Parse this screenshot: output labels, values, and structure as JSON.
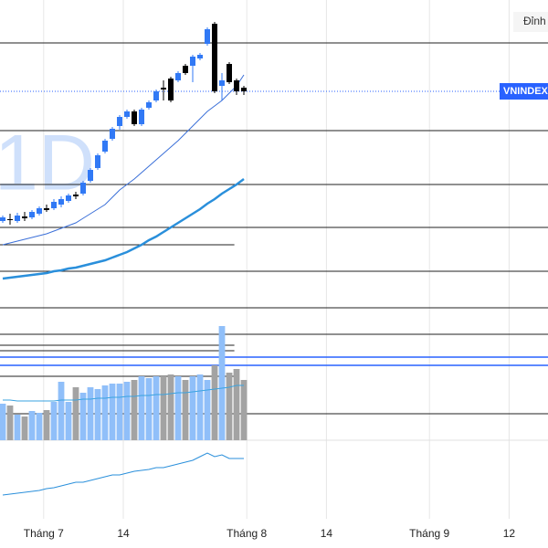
{
  "chart_data": {
    "type": "candlestick",
    "symbol": "VNINDEX",
    "interval": "1D",
    "top_label": "Đỉnh",
    "ylim": [
      0,
      600
    ],
    "xlim": [
      -0.375,
      74.625
    ],
    "xticks": [
      {
        "value": 5.6,
        "label": "Tháng 7"
      },
      {
        "value": 16.5,
        "label": "14"
      },
      {
        "value": 33.4,
        "label": "Tháng 8"
      },
      {
        "value": 44.3,
        "label": "14"
      },
      {
        "value": 58.4,
        "label": "Tháng 9"
      },
      {
        "value": 69.3,
        "label": "12"
      }
    ],
    "up_color": "#3179f5",
    "down_color": "#000000",
    "candles": {
      "open": [
        358,
        360,
        358,
        363,
        362,
        366,
        372,
        372,
        376,
        380,
        387,
        388,
        402,
        416,
        434,
        448,
        462,
        472,
        478,
        464,
        482,
        490,
        504,
        514,
        512,
        528,
        528,
        536,
        552,
        574,
        506,
        530,
        512,
        504
      ],
      "high": [
        364,
        366,
        367,
        368,
        370,
        374,
        376,
        382,
        385,
        388,
        390,
        402,
        416,
        432,
        448,
        461,
        474,
        480,
        480,
        482,
        490,
        502,
        512,
        516,
        522,
        530,
        540,
        542,
        570,
        576,
        520,
        532,
        514,
        506
      ],
      "low": [
        356,
        354,
        356,
        358,
        360,
        364,
        368,
        370,
        373,
        378,
        382,
        386,
        400,
        414,
        432,
        446,
        458,
        470,
        462,
        462,
        480,
        488,
        490,
        488,
        510,
        518,
        510,
        534,
        550,
        498,
        490,
        508,
        496,
        496
      ],
      "close": [
        362,
        359,
        364,
        361,
        368,
        372,
        370,
        379,
        382,
        386,
        385,
        400,
        414,
        430,
        446,
        459,
        472,
        478,
        464,
        480,
        488,
        500,
        502,
        490,
        520,
        520,
        538,
        540,
        568,
        500,
        512,
        510,
        500,
        500
      ]
    },
    "moving_averages": [
      {
        "color": "#3a6fd8",
        "width": 1,
        "values": [
          332,
          334,
          336,
          338,
          340,
          342,
          344,
          347,
          350,
          353,
          356,
          361,
          366,
          371,
          376,
          384,
          392,
          398,
          404,
          411,
          418,
          425,
          432,
          439,
          446,
          454,
          462,
          470,
          478,
          484,
          490,
          498,
          506,
          518
        ]
      },
      {
        "color": "#2a8fdb",
        "width": 2.5,
        "values": [
          295,
          296,
          297,
          298,
          299,
          300,
          301,
          303,
          304,
          306,
          307,
          309,
          311,
          313,
          315,
          318,
          321,
          324,
          328,
          332,
          337,
          341,
          346,
          351,
          356,
          361,
          366,
          371,
          377,
          382,
          388,
          393,
          398,
          404
        ]
      }
    ],
    "volume": {
      "ylim": [
        0,
        482
      ],
      "up_color": "#90bff9",
      "down_color": "#a3a3a3",
      "ma_color": "#3aa3e0",
      "values": [
        40,
        38,
        28,
        26,
        32,
        30,
        33,
        42,
        64,
        42,
        58,
        52,
        58,
        56,
        60,
        62,
        62,
        64,
        66,
        70,
        68,
        70,
        70,
        72,
        70,
        66,
        70,
        72,
        66,
        82,
        125,
        74,
        78,
        66
      ],
      "ma": [
        44,
        44,
        43,
        43,
        43,
        43,
        43,
        43,
        44,
        44,
        44,
        45,
        45,
        46,
        46,
        47,
        47,
        48,
        48,
        49,
        49,
        50,
        50,
        51,
        52,
        52,
        53,
        54,
        55,
        56,
        57,
        58,
        60,
        60
      ]
    },
    "indicator": {
      "color": "#2a8fdb",
      "values": [
        58,
        59,
        60,
        61,
        62,
        63,
        65,
        66,
        68,
        70,
        72,
        72,
        74,
        76,
        78,
        80,
        80,
        82,
        84,
        85,
        86,
        88,
        88,
        90,
        92,
        94,
        96,
        100,
        104,
        100,
        102,
        98,
        98,
        98
      ]
    },
    "levels": [
      553,
      457,
      398,
      351,
      303,
      263,
      234,
      147
    ],
    "short_levels": [
      332,
      222,
      216,
      188
    ],
    "blue_levels": [
      209,
      200
    ]
  }
}
